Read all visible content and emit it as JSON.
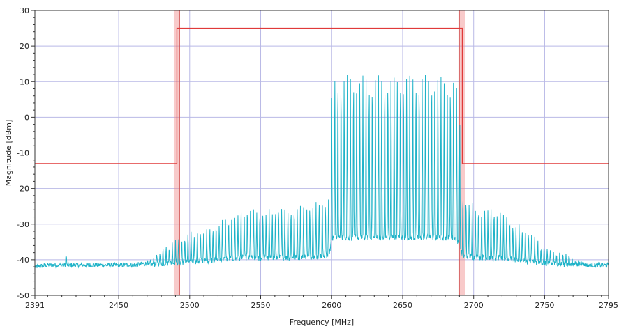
{
  "chart_data": {
    "type": "line",
    "title": "",
    "xlabel": "Frequency [MHz]",
    "ylabel": "Magnitude [dBm]",
    "xlim": [
      2391,
      2795
    ],
    "ylim": [
      -50,
      30
    ],
    "x_ticks": [
      2391,
      2450,
      2500,
      2550,
      2600,
      2650,
      2700,
      2750,
      2795
    ],
    "y_ticks": [
      30,
      20,
      10,
      0,
      -10,
      -20,
      -30,
      -40,
      -50
    ],
    "grid": true,
    "legend": "none",
    "series": [
      {
        "role": "spectrum-trace",
        "color": "#1fb3c8",
        "noise_floor": -41.8,
        "x": [
          2391,
          2400,
          2410,
          2420,
          2430,
          2440,
          2450,
          2460,
          2470,
          2478,
          2485,
          2490,
          2495,
          2500,
          2510,
          2520,
          2530,
          2540,
          2550,
          2560,
          2570,
          2580,
          2590,
          2598,
          2600,
          2602,
          2610,
          2620,
          2630,
          2640,
          2650,
          2660,
          2670,
          2680,
          2687,
          2690,
          2692,
          2700,
          2710,
          2720,
          2730,
          2740,
          2750,
          2760,
          2770,
          2775,
          2780,
          2790,
          2795
        ],
        "y": [
          -42,
          -41.5,
          -41.5,
          -41.5,
          -41.5,
          -41.5,
          -41.5,
          -41.5,
          -41,
          -38,
          -36,
          -35,
          -34,
          -33,
          -32,
          -30,
          -28,
          -26,
          -27,
          -26,
          -26,
          -25,
          -24,
          -23,
          6,
          12,
          11.5,
          11.5,
          11.5,
          11.5,
          11.5,
          11.5,
          12,
          11.5,
          11,
          1,
          -22,
          -25,
          -26,
          -27,
          -30,
          -33,
          -37,
          -38,
          -39,
          -41,
          -41.5,
          -41.5,
          -41.5
        ]
      },
      {
        "role": "spectral-mask",
        "color": "#e03a3a",
        "x": [
          2391,
          2491,
          2491,
          2692,
          2692,
          2795
        ],
        "y": [
          -13,
          -13,
          25,
          25,
          -13,
          -13
        ]
      }
    ],
    "highlight_bands": [
      {
        "x0": 2489,
        "x1": 2493,
        "color": "#f08a8a"
      },
      {
        "x0": 2690,
        "x1": 2694,
        "color": "#f08a8a"
      }
    ]
  }
}
